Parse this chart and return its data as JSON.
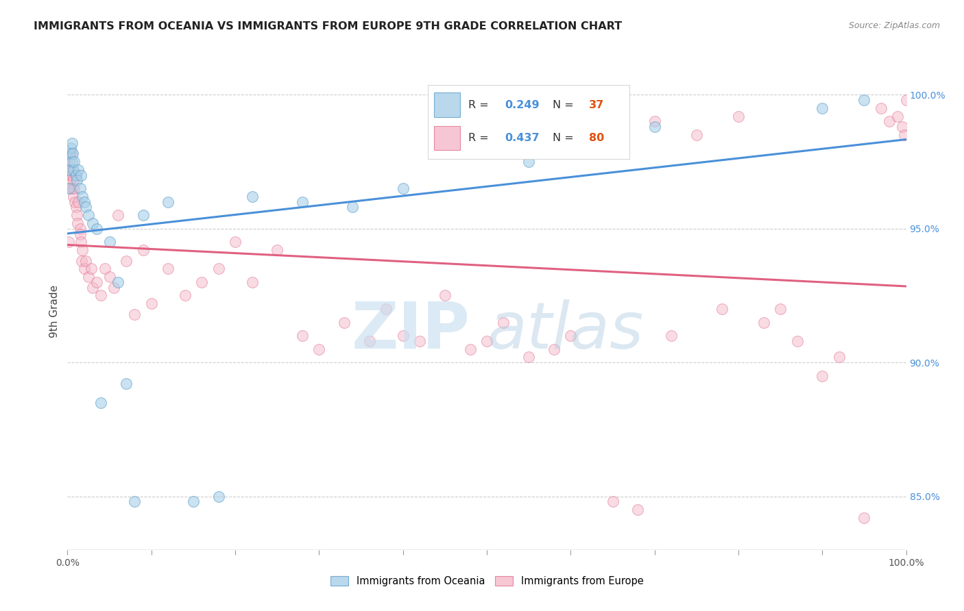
{
  "title": "IMMIGRANTS FROM OCEANIA VS IMMIGRANTS FROM EUROPE 9TH GRADE CORRELATION CHART",
  "source": "Source: ZipAtlas.com",
  "ylabel": "9th Grade",
  "watermark_zip": "ZIP",
  "watermark_atlas": "atlas",
  "legend_blue_R": "0.249",
  "legend_blue_N": "37",
  "legend_pink_R": "0.437",
  "legend_pink_N": "80",
  "blue_fill": "#a8cfe8",
  "blue_edge": "#5b9ec9",
  "pink_fill": "#f4b8c8",
  "pink_edge": "#e07090",
  "line_blue": "#4a90d9",
  "line_pink": "#e06080",
  "R_color": "#4a90d9",
  "N_color": "#e05010",
  "scatter_blue_alpha": 0.6,
  "scatter_pink_alpha": 0.5,
  "oceania_x": [
    0.1,
    0.2,
    0.3,
    0.4,
    0.5,
    0.5,
    0.6,
    0.7,
    0.8,
    1.0,
    1.1,
    1.3,
    1.5,
    1.6,
    1.8,
    2.0,
    2.2,
    2.5,
    3.0,
    3.5,
    4.0,
    5.0,
    6.0,
    7.0,
    8.0,
    9.0,
    12.0,
    15.0,
    18.0,
    22.0,
    28.0,
    34.0,
    40.0,
    55.0,
    70.0,
    90.0,
    95.0
  ],
  "oceania_y": [
    96.5,
    97.2,
    97.8,
    98.0,
    98.2,
    97.5,
    97.8,
    97.2,
    97.5,
    97.0,
    96.8,
    97.2,
    96.5,
    97.0,
    96.2,
    96.0,
    95.8,
    95.5,
    95.2,
    95.0,
    88.5,
    94.5,
    93.0,
    89.2,
    84.8,
    95.5,
    96.0,
    84.8,
    85.0,
    96.2,
    96.0,
    95.8,
    96.5,
    97.5,
    98.8,
    99.5,
    99.8
  ],
  "europe_x": [
    0.1,
    0.2,
    0.2,
    0.3,
    0.3,
    0.4,
    0.4,
    0.5,
    0.5,
    0.6,
    0.6,
    0.7,
    0.7,
    0.8,
    0.9,
    1.0,
    1.0,
    1.1,
    1.2,
    1.3,
    1.5,
    1.5,
    1.6,
    1.7,
    1.8,
    2.0,
    2.2,
    2.5,
    2.8,
    3.0,
    3.5,
    4.0,
    4.5,
    5.0,
    5.5,
    6.0,
    7.0,
    8.0,
    9.0,
    10.0,
    12.0,
    14.0,
    16.0,
    18.0,
    20.0,
    22.0,
    25.0,
    28.0,
    30.0,
    33.0,
    36.0,
    38.0,
    40.0,
    42.0,
    45.0,
    48.0,
    50.0,
    52.0,
    55.0,
    58.0,
    60.0,
    65.0,
    68.0,
    70.0,
    72.0,
    75.0,
    78.0,
    80.0,
    83.0,
    85.0,
    87.0,
    90.0,
    92.0,
    95.0,
    97.0,
    98.0,
    99.0,
    99.5,
    99.8,
    100.0
  ],
  "europe_y": [
    94.5,
    97.8,
    97.5,
    97.2,
    96.8,
    97.0,
    96.5,
    97.8,
    97.2,
    97.0,
    96.5,
    96.8,
    96.2,
    96.5,
    96.0,
    95.8,
    97.0,
    95.5,
    95.2,
    96.0,
    95.0,
    94.8,
    94.5,
    93.8,
    94.2,
    93.5,
    93.8,
    93.2,
    93.5,
    92.8,
    93.0,
    92.5,
    93.5,
    93.2,
    92.8,
    95.5,
    93.8,
    91.8,
    94.2,
    92.2,
    93.5,
    92.5,
    93.0,
    93.5,
    94.5,
    93.0,
    94.2,
    91.0,
    90.5,
    91.5,
    90.8,
    92.0,
    91.0,
    90.8,
    92.5,
    90.5,
    90.8,
    91.5,
    90.2,
    90.5,
    91.0,
    84.8,
    84.5,
    99.0,
    91.0,
    98.5,
    92.0,
    99.2,
    91.5,
    92.0,
    90.8,
    89.5,
    90.2,
    84.2,
    99.5,
    99.0,
    99.2,
    98.8,
    98.5,
    99.8
  ]
}
